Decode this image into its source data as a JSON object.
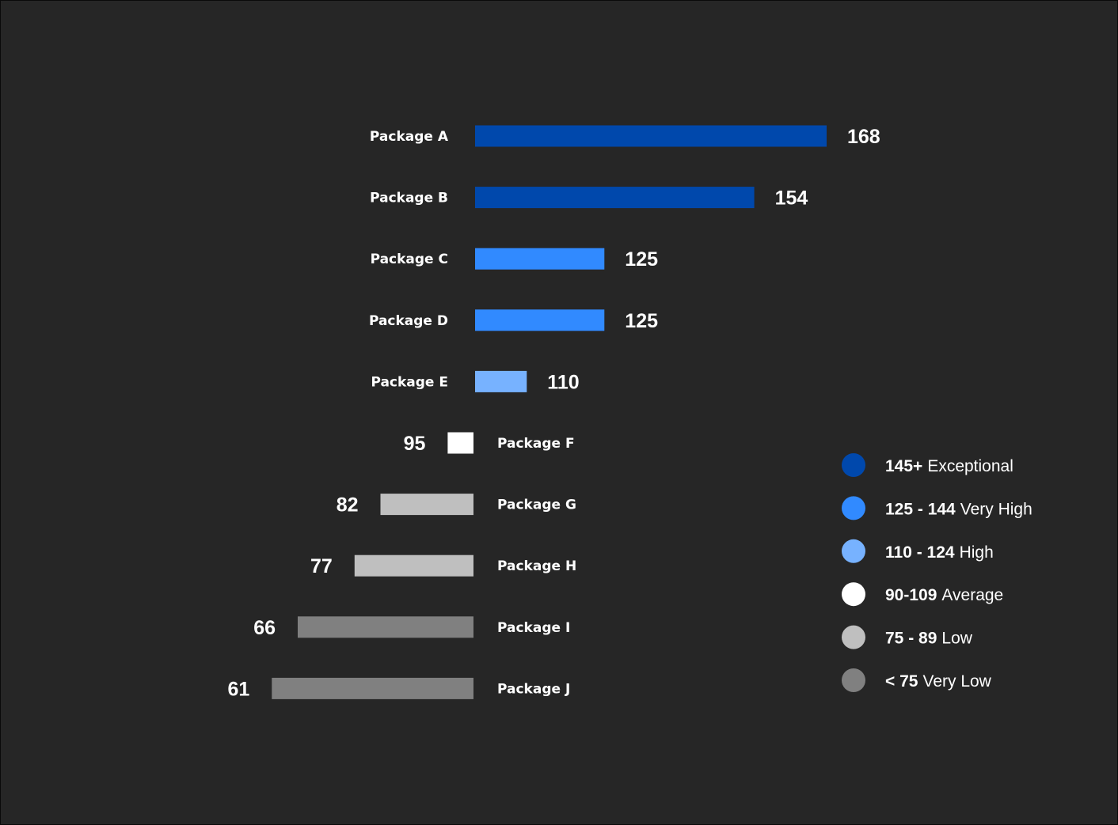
{
  "chart_data": {
    "type": "bar",
    "orientation": "horizontal",
    "baseline": 100,
    "categories": [
      "Package A",
      "Package B",
      "Package C",
      "Package D",
      "Package E",
      "Package F",
      "Package G",
      "Package H",
      "Package I",
      "Package J"
    ],
    "values": [
      168,
      154,
      125,
      125,
      110,
      95,
      82,
      77,
      66,
      61
    ],
    "title": "",
    "xlabel": "",
    "ylabel": "",
    "grid": false,
    "legend_position": "right",
    "legend": [
      {
        "range": "145+",
        "label": "Exceptional",
        "color": "#0048AC"
      },
      {
        "range": "125 - 144",
        "label": "Very High",
        "color": "#318AFF"
      },
      {
        "range": "110 - 124",
        "label": "High",
        "color": "#77B2FF"
      },
      {
        "range": "90-109",
        "label": "Average",
        "color": "#FFFFFF"
      },
      {
        "range": "75 - 89",
        "label": "Low",
        "color": "#BFBFBF"
      },
      {
        "range": "< 75",
        "label": "Very Low",
        "color": "#808080"
      }
    ]
  }
}
